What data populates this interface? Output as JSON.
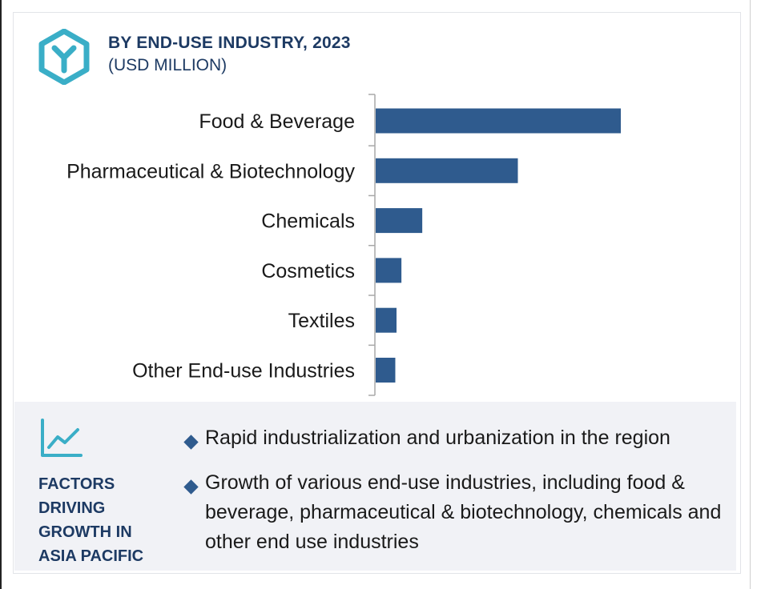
{
  "header": {
    "icon": "hexagon-y-icon",
    "title": "BY END-USE INDUSTRY, 2023",
    "subtitle": "(USD MILLION)"
  },
  "chart_data": {
    "type": "bar",
    "orientation": "horizontal",
    "title": "BY END-USE INDUSTRY, 2023",
    "unit": "USD MILLION",
    "categories": [
      "Food & Beverage",
      "Pharmaceutical & Biotechnology",
      "Chemicals",
      "Cosmetics",
      "Textiles",
      "Other End-use Industries"
    ],
    "values": [
      100,
      58,
      19,
      10.5,
      8.5,
      8
    ],
    "xlim": [
      0,
      100
    ],
    "grid": false,
    "legend": "none",
    "bar_color": "#2f5b8e"
  },
  "factors": {
    "icon": "trend-line-icon",
    "label_lines": [
      "FACTORS",
      "DRIVING",
      "GROWTH IN",
      "ASIA PACIFIC"
    ],
    "bullets": [
      "Rapid industrialization and urbanization in the region",
      "Growth of various end-use industries, including food & beverage, pharmaceutical & biotechnology, chemicals and other end use industries"
    ]
  },
  "colors": {
    "accent": "#2f5b8e",
    "title": "#1d3a63",
    "icon": "#3aaec7",
    "panel": "#f1f2f6"
  }
}
